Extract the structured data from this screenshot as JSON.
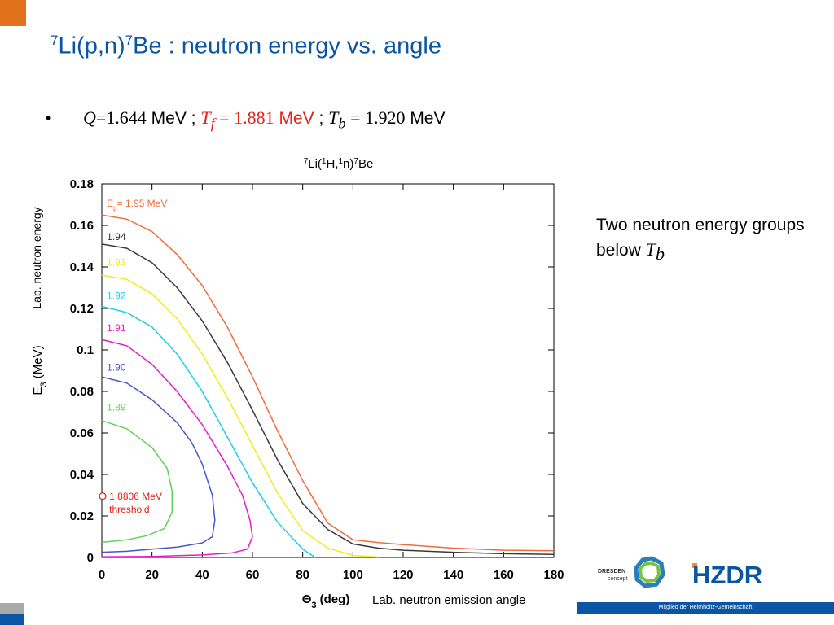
{
  "slide": {
    "title_sup1": "7",
    "title_mid": "Li(p,n)",
    "title_sup2": "7",
    "title_rest": "Be : neutron energy vs. angle",
    "bullet_symbol": "•",
    "bullet": {
      "q_sym": "Q",
      "q_eq": "=1.644",
      "mev1": " MeV ; ",
      "tf_sym": "T",
      "tf_sub": "f",
      "tf_eq": " = 1.881",
      "mev2": " MeV",
      "sep": " ; ",
      "tb_sym": "T",
      "tb_sub": "b",
      "tb_eq": " = 1.920",
      "mev3": " MeV"
    },
    "note_text": "Two neutron energy groups below ",
    "note_sym": "T",
    "note_sub": "b",
    "caption": "Lab. neutron emission angle",
    "footer_text": "Mitglied der Helmholtz-Gemeinschaft",
    "logo_dresden_line1": "DRESDEN",
    "logo_dresden_line2": "concept",
    "logo_hzdr": "HZDR",
    "colors": {
      "title": "#0b56a4",
      "accent_red": "#e0231c",
      "corner": "#e2711d",
      "footer": "#0b56a4"
    }
  },
  "chart_data": {
    "type": "line",
    "title_parts": [
      "7",
      "Li(",
      "1",
      "H,",
      "1",
      "n)",
      "7",
      "Be"
    ],
    "xlabel_main": "Θ",
    "xlabel_sub": "3",
    "xlabel_rest": " (deg)",
    "ylabel_left_main": "E",
    "ylabel_left_sub": "3",
    "ylabel_left_rest": " (MeV)",
    "ylabel_second": "Lab. neutron energy",
    "xlim": [
      0,
      180
    ],
    "ylim": [
      0,
      0.18
    ],
    "xticks": [
      0,
      20,
      40,
      60,
      80,
      100,
      120,
      140,
      160,
      180
    ],
    "yticks": [
      0,
      0.02,
      0.04,
      0.06,
      0.08,
      0.1,
      0.12,
      0.14,
      0.16,
      0.18
    ],
    "ytick_labels": [
      "0",
      "0.02",
      "0.04",
      "0.06",
      "0.08",
      "0.1",
      "0.12",
      "0.14",
      "0.16",
      "0.18"
    ],
    "grid": false,
    "series": [
      {
        "label_main": "E",
        "label_sub": "p",
        "label_rest": "= 1.95 MeV",
        "label_x": 2,
        "label_y": 0.169,
        "color": "#f26b3a",
        "points": [
          [
            0,
            0.165
          ],
          [
            10,
            0.163
          ],
          [
            20,
            0.157
          ],
          [
            30,
            0.146
          ],
          [
            40,
            0.131
          ],
          [
            50,
            0.111
          ],
          [
            60,
            0.087
          ],
          [
            70,
            0.061
          ],
          [
            80,
            0.037
          ],
          [
            90,
            0.0165
          ],
          [
            100,
            0.0085
          ],
          [
            110,
            0.0072
          ],
          [
            120,
            0.0062
          ],
          [
            140,
            0.0045
          ],
          [
            160,
            0.0035
          ],
          [
            180,
            0.0032
          ]
        ]
      },
      {
        "label_main": "1.94",
        "label_sub": "",
        "label_rest": "",
        "label_x": 2,
        "label_y": 0.153,
        "color": "#3a3a3a",
        "points": [
          [
            0,
            0.151
          ],
          [
            10,
            0.149
          ],
          [
            20,
            0.142
          ],
          [
            30,
            0.13
          ],
          [
            40,
            0.114
          ],
          [
            50,
            0.094
          ],
          [
            60,
            0.071
          ],
          [
            70,
            0.047
          ],
          [
            80,
            0.026
          ],
          [
            90,
            0.0135
          ],
          [
            100,
            0.0065
          ],
          [
            110,
            0.0045
          ],
          [
            120,
            0.0035
          ],
          [
            140,
            0.0025
          ],
          [
            160,
            0.0018
          ],
          [
            180,
            0.0015
          ]
        ]
      },
      {
        "label_main": "1.93",
        "label_sub": "",
        "label_rest": "",
        "label_x": 2,
        "label_y": 0.1405,
        "color": "#f5e91a",
        "points": [
          [
            0,
            0.136
          ],
          [
            10,
            0.134
          ],
          [
            20,
            0.127
          ],
          [
            30,
            0.115
          ],
          [
            40,
            0.098
          ],
          [
            50,
            0.077
          ],
          [
            60,
            0.054
          ],
          [
            70,
            0.031
          ],
          [
            80,
            0.013
          ],
          [
            90,
            0.0045
          ],
          [
            100,
            0.001
          ],
          [
            110,
            0.0002
          ]
        ]
      },
      {
        "label_main": "1.92",
        "label_sub": "",
        "label_rest": "",
        "label_x": 2,
        "label_y": 0.1245,
        "color": "#19d2e6",
        "points": [
          [
            0,
            0.121
          ],
          [
            10,
            0.118
          ],
          [
            20,
            0.111
          ],
          [
            30,
            0.098
          ],
          [
            40,
            0.08
          ],
          [
            50,
            0.058
          ],
          [
            60,
            0.036
          ],
          [
            70,
            0.017
          ],
          [
            80,
            0.004
          ],
          [
            85,
            0
          ]
        ]
      },
      {
        "label_main": "1.91",
        "label_sub": "",
        "label_rest": "",
        "label_x": 2,
        "label_y": 0.109,
        "color": "#e81cc9",
        "points": [
          [
            0,
            0.105
          ],
          [
            10,
            0.102
          ],
          [
            20,
            0.093
          ],
          [
            30,
            0.08
          ],
          [
            40,
            0.064
          ],
          [
            50,
            0.044
          ],
          [
            56,
            0.03
          ],
          [
            59,
            0.018
          ],
          [
            60,
            0.01
          ],
          [
            58,
            0.004
          ],
          [
            52,
            0.0022
          ],
          [
            40,
            0.0012
          ],
          [
            20,
            0.0005
          ],
          [
            0,
            0.0003
          ]
        ]
      },
      {
        "label_main": "1.90",
        "label_sub": "",
        "label_rest": "",
        "label_x": 2,
        "label_y": 0.09,
        "color": "#4a55c8",
        "points": [
          [
            0,
            0.087
          ],
          [
            10,
            0.084
          ],
          [
            20,
            0.076
          ],
          [
            30,
            0.065
          ],
          [
            36,
            0.055
          ],
          [
            40,
            0.045
          ],
          [
            44,
            0.03
          ],
          [
            45,
            0.018
          ],
          [
            44,
            0.01
          ],
          [
            40,
            0.007
          ],
          [
            30,
            0.005
          ],
          [
            20,
            0.004
          ],
          [
            10,
            0.003
          ],
          [
            0,
            0.0025
          ]
        ]
      },
      {
        "label_main": "1.89",
        "label_sub": "",
        "label_rest": "",
        "label_x": 2,
        "label_y": 0.0708,
        "color": "#5fd155",
        "points": [
          [
            0,
            0.066
          ],
          [
            10,
            0.062
          ],
          [
            20,
            0.053
          ],
          [
            26,
            0.043
          ],
          [
            28,
            0.032
          ],
          [
            28,
            0.022
          ],
          [
            25,
            0.014
          ],
          [
            18,
            0.0105
          ],
          [
            10,
            0.0085
          ],
          [
            0,
            0.0073
          ]
        ]
      }
    ],
    "threshold": {
      "label_line1": "1.8806 MeV",
      "label_line2": "threshold",
      "x": 0,
      "y": 0.0295,
      "label_x": 2,
      "label_y": 0.0295,
      "color": "#e0231c"
    }
  }
}
